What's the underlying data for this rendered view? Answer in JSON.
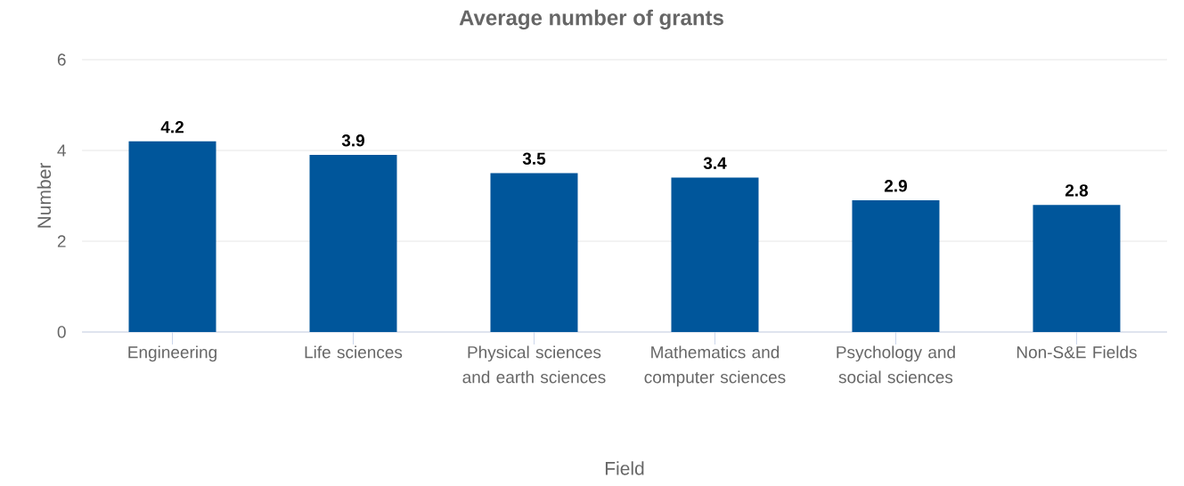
{
  "chart_data": {
    "type": "bar",
    "title": "Average number of grants",
    "xlabel": "Field",
    "ylabel": "Number",
    "categories": [
      "Engineering",
      "Life sciences",
      "Physical sciences and earth sciences",
      "Mathematics and computer sciences",
      "Psychology and social sciences",
      "Non-S&E Fields"
    ],
    "values": [
      4.2,
      3.9,
      3.5,
      3.4,
      2.9,
      2.8
    ],
    "color": "#00569b",
    "ylim": [
      0,
      6
    ],
    "yticks": [
      0,
      2,
      4,
      6
    ],
    "grid": "y",
    "data_labels": true
  }
}
